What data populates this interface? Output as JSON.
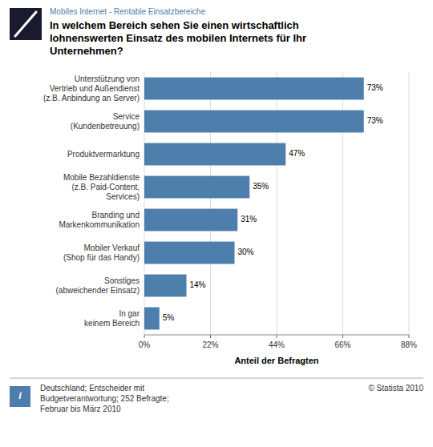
{
  "chart_data": {
    "type": "bar",
    "orientation": "horizontal",
    "subtitle": "Mobiles Internet - Rentable Einsatzbereiche",
    "title": "In welchem Bereich sehen Sie einen wirtschaftlich\nlohnenswerten Einsatz des mobilen Internets für Ihr\nUnternehmen?",
    "categories": [
      "Unterstützung von\nVertrieb und Außendienst\n(z.B. Anbindung an Server)",
      "Service\n(Kundenbetreuung)",
      "Produktvermarktung",
      "Mobile Bezahldienste\n(z.B. Paid-Content,\nServices)",
      "Branding und\nMarkenkommunikation",
      "Mobiler Verkauf\n(Shop für das Handy)",
      "Sonstiges\n(abweichender Einsatz)",
      "In gar\nkeinem Bereich"
    ],
    "values": [
      73,
      73,
      47,
      35,
      31,
      30,
      14,
      5
    ],
    "value_labels": [
      "73%",
      "73%",
      "47%",
      "35%",
      "31%",
      "30%",
      "14%",
      "5%"
    ],
    "data_labels": true,
    "color": "#4d7eac",
    "x_label": "Anteil der Befragten",
    "xlim": [
      0,
      88
    ],
    "xticks": [
      {
        "value": 0,
        "label": "0%"
      },
      {
        "value": 22,
        "label": "22%"
      },
      {
        "value": 44,
        "label": "44%"
      },
      {
        "value": 66,
        "label": "66%"
      },
      {
        "value": 88,
        "label": "88%"
      }
    ],
    "grid": true,
    "annotations": [
      "Deutschland; Entscheider mit\nBudgetverantwortung; 252 Befragte;\nFebruar bis März 2010",
      "© Statista 2010",
      "i"
    ]
  }
}
